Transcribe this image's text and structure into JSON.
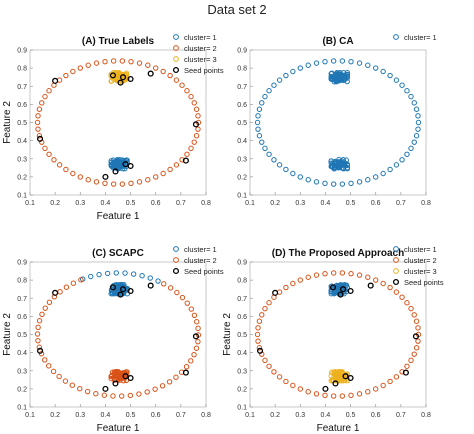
{
  "figure": {
    "title": "Data set 2"
  },
  "colors": {
    "cluster1": "#1f77b4",
    "cluster2": "#d95319",
    "cluster3": "#edb120",
    "seed": "#000000"
  },
  "chart_data": [
    {
      "type": "scatter",
      "title": "(A) True Labels",
      "xlabel": "Feature 1",
      "ylabel": "Feature 2",
      "xlim": [
        0.1,
        0.8
      ],
      "ylim": [
        0.1,
        0.9
      ],
      "xticks": [
        "0.1",
        "0.2",
        "0.3",
        "0.4",
        "0.5",
        "0.6",
        "0.7",
        "0.8"
      ],
      "yticks": [
        "0.1",
        "0.2",
        "0.3",
        "0.4",
        "0.5",
        "0.6",
        "0.7",
        "0.8",
        "0.9"
      ],
      "legend_position": "top-right",
      "legend": [
        "cluster= 1",
        "cluster= 2",
        "cluster= 3",
        "Seed points"
      ],
      "series": [
        {
          "name": "cluster= 1",
          "color": "cluster1",
          "cluster": {
            "center": [
              0.455,
              0.27
            ],
            "spread": [
              0.032,
              0.025
            ],
            "count": 70
          }
        },
        {
          "name": "cluster= 2",
          "color": "cluster2",
          "ring": {
            "center": [
              0.45,
              0.5
            ],
            "radius": [
              0.32,
              0.34
            ],
            "count": 58
          }
        },
        {
          "name": "cluster= 3",
          "color": "cluster3",
          "cluster": {
            "center": [
              0.455,
              0.75
            ],
            "spread": [
              0.032,
              0.025
            ],
            "count": 70
          }
        },
        {
          "name": "Seed points",
          "color": "seed",
          "points": [
            [
              0.2,
              0.73
            ],
            [
              0.76,
              0.49
            ],
            [
              0.14,
              0.41
            ],
            [
              0.58,
              0.77
            ],
            [
              0.72,
              0.29
            ],
            [
              0.4,
              0.2
            ],
            [
              0.5,
              0.26
            ],
            [
              0.48,
              0.27
            ],
            [
              0.44,
              0.23
            ],
            [
              0.47,
              0.75
            ],
            [
              0.5,
              0.74
            ],
            [
              0.46,
              0.72
            ],
            [
              0.43,
              0.76
            ]
          ]
        }
      ]
    },
    {
      "type": "scatter",
      "title": "(B) CA",
      "xlabel": "",
      "ylabel": "",
      "xlim": [
        0.1,
        0.8
      ],
      "ylim": [
        0.1,
        0.9
      ],
      "xticks": [
        "0.1",
        "0.2",
        "0.3",
        "0.4",
        "0.5",
        "0.6",
        "0.7",
        "0.8"
      ],
      "yticks": [
        "0.1",
        "0.2",
        "0.3",
        "0.4",
        "0.5",
        "0.6",
        "0.7",
        "0.8",
        "0.9"
      ],
      "legend_position": "top-right",
      "legend": [
        "cluster= 1"
      ],
      "series": [
        {
          "name": "cluster= 1",
          "color": "cluster1",
          "cluster": {
            "center": [
              0.455,
              0.27
            ],
            "spread": [
              0.032,
              0.025
            ],
            "count": 70
          }
        },
        {
          "name": "cluster= 1",
          "color": "cluster1",
          "ring": {
            "center": [
              0.45,
              0.5
            ],
            "radius": [
              0.32,
              0.34
            ],
            "count": 58
          }
        },
        {
          "name": "cluster= 1",
          "color": "cluster1",
          "cluster": {
            "center": [
              0.455,
              0.75
            ],
            "spread": [
              0.032,
              0.025
            ],
            "count": 70
          }
        }
      ]
    },
    {
      "type": "scatter",
      "title": "(C) SCAPC",
      "xlabel": "Feature 1",
      "ylabel": "Feature 2",
      "xlim": [
        0.1,
        0.8
      ],
      "ylim": [
        0.1,
        0.9
      ],
      "xticks": [
        "0.1",
        "0.2",
        "0.3",
        "0.4",
        "0.5",
        "0.6",
        "0.7",
        "0.8"
      ],
      "yticks": [
        "0.1",
        "0.2",
        "0.3",
        "0.4",
        "0.5",
        "0.6",
        "0.7",
        "0.8",
        "0.9"
      ],
      "legend_position": "top-right",
      "legend": [
        "cluster= 1",
        "cluster= 2",
        "Seed points"
      ],
      "series": [
        {
          "name": "cluster= 1",
          "color": "cluster1",
          "cluster": {
            "center": [
              0.455,
              0.75
            ],
            "spread": [
              0.032,
              0.025
            ],
            "count": 70
          }
        },
        {
          "name": "cluster= 1",
          "color": "cluster1",
          "ring": {
            "center": [
              0.45,
              0.5
            ],
            "radius": [
              0.32,
              0.34
            ],
            "count": 58,
            "angle_range": [
              1.05,
              2.05
            ]
          }
        },
        {
          "name": "cluster= 2",
          "color": "cluster2",
          "cluster": {
            "center": [
              0.455,
              0.27
            ],
            "spread": [
              0.032,
              0.025
            ],
            "count": 70
          }
        },
        {
          "name": "cluster= 2",
          "color": "cluster2",
          "ring": {
            "center": [
              0.45,
              0.5
            ],
            "radius": [
              0.32,
              0.34
            ],
            "count": 58,
            "angle_range": [
              2.05,
              7.33
            ]
          }
        },
        {
          "name": "Seed points",
          "color": "seed",
          "points": [
            [
              0.2,
              0.73
            ],
            [
              0.76,
              0.49
            ],
            [
              0.14,
              0.41
            ],
            [
              0.58,
              0.77
            ],
            [
              0.72,
              0.29
            ],
            [
              0.4,
              0.2
            ],
            [
              0.5,
              0.26
            ],
            [
              0.48,
              0.27
            ],
            [
              0.44,
              0.23
            ],
            [
              0.47,
              0.75
            ],
            [
              0.5,
              0.74
            ],
            [
              0.46,
              0.72
            ],
            [
              0.43,
              0.76
            ]
          ]
        }
      ]
    },
    {
      "type": "scatter",
      "title": "(D) The Proposed Approach",
      "xlabel": "Feature 1",
      "ylabel": "Feature 2",
      "xlim": [
        0.1,
        0.8
      ],
      "ylim": [
        0.1,
        0.9
      ],
      "xticks": [
        "0.1",
        "0.2",
        "0.3",
        "0.4",
        "0.5",
        "0.6",
        "0.7",
        "0.8"
      ],
      "yticks": [
        "0.1",
        "0.2",
        "0.3",
        "0.4",
        "0.5",
        "0.6",
        "0.7",
        "0.8",
        "0.9"
      ],
      "legend_position": "top-right",
      "legend": [
        "cluster= 1",
        "cluster= 2",
        "cluster= 3",
        "Seed points"
      ],
      "series": [
        {
          "name": "cluster= 1",
          "color": "cluster1",
          "cluster": {
            "center": [
              0.455,
              0.75
            ],
            "spread": [
              0.032,
              0.025
            ],
            "count": 70
          }
        },
        {
          "name": "cluster= 2",
          "color": "cluster2",
          "ring": {
            "center": [
              0.45,
              0.5
            ],
            "radius": [
              0.32,
              0.34
            ],
            "count": 58
          }
        },
        {
          "name": "cluster= 3",
          "color": "cluster3",
          "cluster": {
            "center": [
              0.455,
              0.27
            ],
            "spread": [
              0.032,
              0.025
            ],
            "count": 70
          }
        },
        {
          "name": "Seed points",
          "color": "seed",
          "points": [
            [
              0.2,
              0.73
            ],
            [
              0.76,
              0.49
            ],
            [
              0.14,
              0.41
            ],
            [
              0.58,
              0.77
            ],
            [
              0.72,
              0.29
            ],
            [
              0.4,
              0.2
            ],
            [
              0.5,
              0.26
            ],
            [
              0.48,
              0.27
            ],
            [
              0.44,
              0.23
            ],
            [
              0.47,
              0.75
            ],
            [
              0.5,
              0.74
            ],
            [
              0.46,
              0.72
            ],
            [
              0.43,
              0.76
            ]
          ]
        }
      ]
    }
  ]
}
